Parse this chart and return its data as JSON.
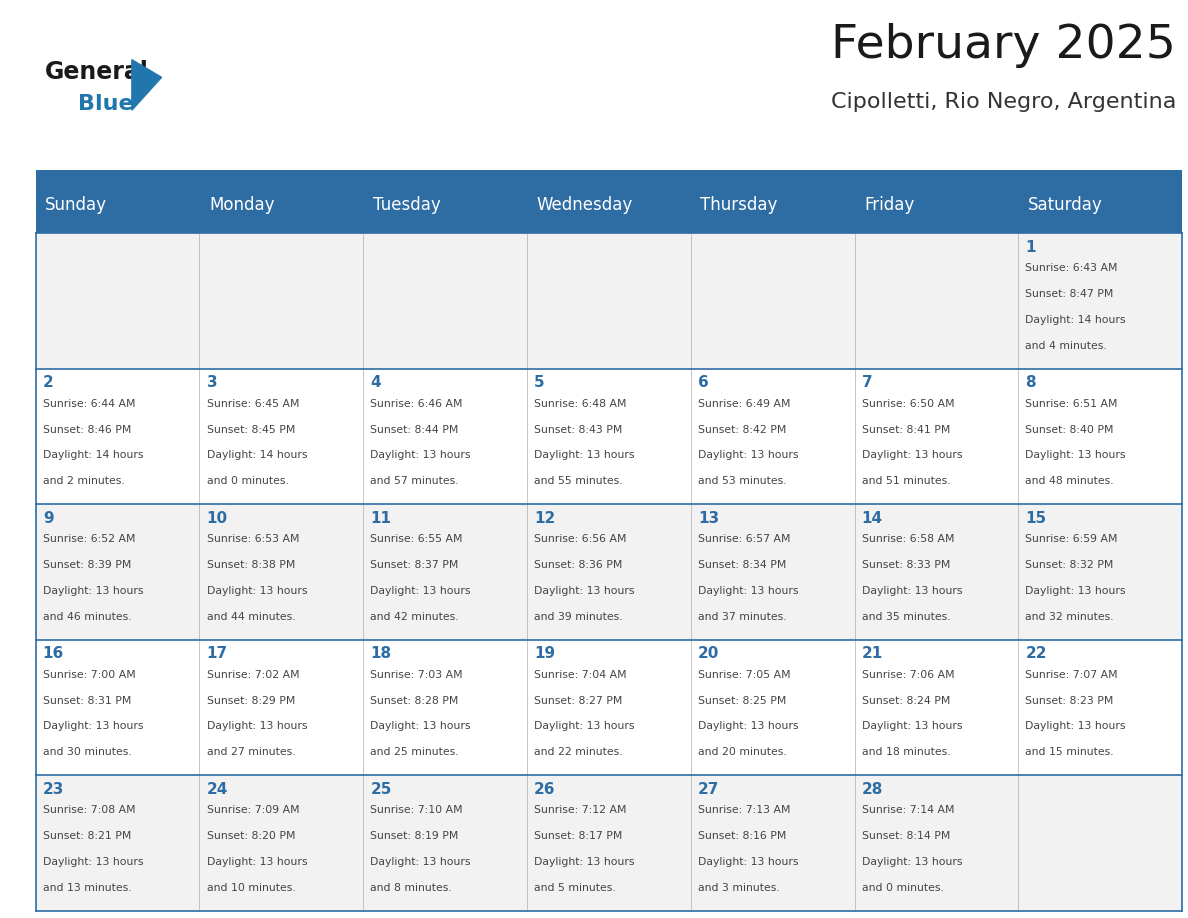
{
  "title": "February 2025",
  "subtitle": "Cipolletti, Rio Negro, Argentina",
  "days_of_week": [
    "Sunday",
    "Monday",
    "Tuesday",
    "Wednesday",
    "Thursday",
    "Friday",
    "Saturday"
  ],
  "header_bg": "#2E6DA4",
  "header_text_color": "#FFFFFF",
  "cell_bg_even": "#F2F2F2",
  "cell_bg_odd": "#FFFFFF",
  "border_color": "#2E6DA4",
  "title_color": "#1a1a1a",
  "subtitle_color": "#333333",
  "day_number_color": "#2E6DA4",
  "text_color": "#444444",
  "logo_general_color": "#1a1a1a",
  "logo_blue_color": "#2176AE",
  "weeks": [
    [
      {
        "day": null,
        "info": ""
      },
      {
        "day": null,
        "info": ""
      },
      {
        "day": null,
        "info": ""
      },
      {
        "day": null,
        "info": ""
      },
      {
        "day": null,
        "info": ""
      },
      {
        "day": null,
        "info": ""
      },
      {
        "day": 1,
        "info": "Sunrise: 6:43 AM\nSunset: 8:47 PM\nDaylight: 14 hours\nand 4 minutes."
      }
    ],
    [
      {
        "day": 2,
        "info": "Sunrise: 6:44 AM\nSunset: 8:46 PM\nDaylight: 14 hours\nand 2 minutes."
      },
      {
        "day": 3,
        "info": "Sunrise: 6:45 AM\nSunset: 8:45 PM\nDaylight: 14 hours\nand 0 minutes."
      },
      {
        "day": 4,
        "info": "Sunrise: 6:46 AM\nSunset: 8:44 PM\nDaylight: 13 hours\nand 57 minutes."
      },
      {
        "day": 5,
        "info": "Sunrise: 6:48 AM\nSunset: 8:43 PM\nDaylight: 13 hours\nand 55 minutes."
      },
      {
        "day": 6,
        "info": "Sunrise: 6:49 AM\nSunset: 8:42 PM\nDaylight: 13 hours\nand 53 minutes."
      },
      {
        "day": 7,
        "info": "Sunrise: 6:50 AM\nSunset: 8:41 PM\nDaylight: 13 hours\nand 51 minutes."
      },
      {
        "day": 8,
        "info": "Sunrise: 6:51 AM\nSunset: 8:40 PM\nDaylight: 13 hours\nand 48 minutes."
      }
    ],
    [
      {
        "day": 9,
        "info": "Sunrise: 6:52 AM\nSunset: 8:39 PM\nDaylight: 13 hours\nand 46 minutes."
      },
      {
        "day": 10,
        "info": "Sunrise: 6:53 AM\nSunset: 8:38 PM\nDaylight: 13 hours\nand 44 minutes."
      },
      {
        "day": 11,
        "info": "Sunrise: 6:55 AM\nSunset: 8:37 PM\nDaylight: 13 hours\nand 42 minutes."
      },
      {
        "day": 12,
        "info": "Sunrise: 6:56 AM\nSunset: 8:36 PM\nDaylight: 13 hours\nand 39 minutes."
      },
      {
        "day": 13,
        "info": "Sunrise: 6:57 AM\nSunset: 8:34 PM\nDaylight: 13 hours\nand 37 minutes."
      },
      {
        "day": 14,
        "info": "Sunrise: 6:58 AM\nSunset: 8:33 PM\nDaylight: 13 hours\nand 35 minutes."
      },
      {
        "day": 15,
        "info": "Sunrise: 6:59 AM\nSunset: 8:32 PM\nDaylight: 13 hours\nand 32 minutes."
      }
    ],
    [
      {
        "day": 16,
        "info": "Sunrise: 7:00 AM\nSunset: 8:31 PM\nDaylight: 13 hours\nand 30 minutes."
      },
      {
        "day": 17,
        "info": "Sunrise: 7:02 AM\nSunset: 8:29 PM\nDaylight: 13 hours\nand 27 minutes."
      },
      {
        "day": 18,
        "info": "Sunrise: 7:03 AM\nSunset: 8:28 PM\nDaylight: 13 hours\nand 25 minutes."
      },
      {
        "day": 19,
        "info": "Sunrise: 7:04 AM\nSunset: 8:27 PM\nDaylight: 13 hours\nand 22 minutes."
      },
      {
        "day": 20,
        "info": "Sunrise: 7:05 AM\nSunset: 8:25 PM\nDaylight: 13 hours\nand 20 minutes."
      },
      {
        "day": 21,
        "info": "Sunrise: 7:06 AM\nSunset: 8:24 PM\nDaylight: 13 hours\nand 18 minutes."
      },
      {
        "day": 22,
        "info": "Sunrise: 7:07 AM\nSunset: 8:23 PM\nDaylight: 13 hours\nand 15 minutes."
      }
    ],
    [
      {
        "day": 23,
        "info": "Sunrise: 7:08 AM\nSunset: 8:21 PM\nDaylight: 13 hours\nand 13 minutes."
      },
      {
        "day": 24,
        "info": "Sunrise: 7:09 AM\nSunset: 8:20 PM\nDaylight: 13 hours\nand 10 minutes."
      },
      {
        "day": 25,
        "info": "Sunrise: 7:10 AM\nSunset: 8:19 PM\nDaylight: 13 hours\nand 8 minutes."
      },
      {
        "day": 26,
        "info": "Sunrise: 7:12 AM\nSunset: 8:17 PM\nDaylight: 13 hours\nand 5 minutes."
      },
      {
        "day": 27,
        "info": "Sunrise: 7:13 AM\nSunset: 8:16 PM\nDaylight: 13 hours\nand 3 minutes."
      },
      {
        "day": 28,
        "info": "Sunrise: 7:14 AM\nSunset: 8:14 PM\nDaylight: 13 hours\nand 0 minutes."
      },
      {
        "day": null,
        "info": ""
      }
    ]
  ]
}
